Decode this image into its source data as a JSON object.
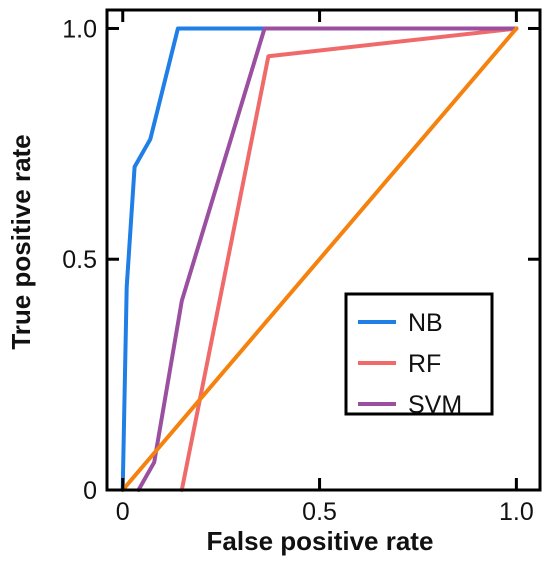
{
  "chart_data": {
    "type": "line",
    "xlabel": "False positive rate",
    "ylabel": "True positive rate",
    "xlim": [
      -0.04,
      1.06
    ],
    "ylim": [
      0,
      1.04
    ],
    "x_ticks": [
      0,
      0.5,
      1.0
    ],
    "x_tick_labels": [
      "0",
      "0.5",
      "1.0"
    ],
    "y_ticks": [
      0,
      0.5,
      1.0
    ],
    "y_tick_labels": [
      "0",
      "0.5",
      "1.0"
    ],
    "grid": false,
    "legend_position": "bottom-right",
    "series": [
      {
        "name": "NB",
        "color": "#1f7fe6",
        "x": [
          0.0,
          0.01,
          0.03,
          0.07,
          0.14,
          0.2,
          1.0
        ],
        "y": [
          0.0,
          0.44,
          0.7,
          0.76,
          1.0,
          1.0,
          1.0
        ]
      },
      {
        "name": "RF",
        "color": "#f06a6a",
        "x": [
          0.15,
          0.37,
          1.0
        ],
        "y": [
          0.0,
          0.94,
          1.0
        ]
      },
      {
        "name": "SVM",
        "color": "#9b4fa0",
        "x": [
          0.04,
          0.08,
          0.15,
          0.36,
          1.0
        ],
        "y": [
          0.0,
          0.06,
          0.41,
          1.0,
          1.0
        ]
      },
      {
        "name": "",
        "color": "#f5820f",
        "x": [
          0.0,
          1.0
        ],
        "y": [
          0.0,
          1.0
        ]
      }
    ]
  }
}
